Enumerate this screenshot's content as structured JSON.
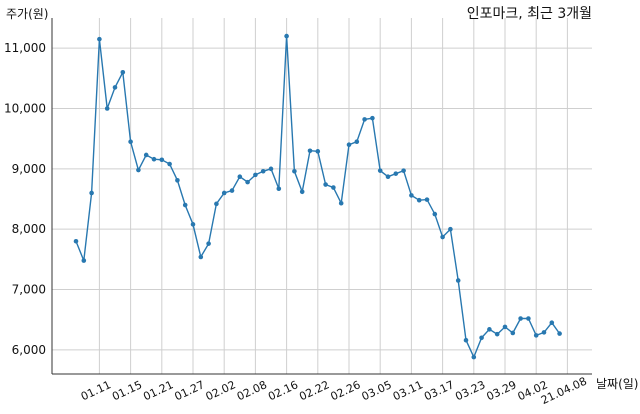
{
  "chart_data": {
    "type": "line",
    "title": "인포마크, 최근 3개월",
    "ylabel": "주가(원)",
    "xlabel": "날짜(일)",
    "ylim": [
      5600,
      11500
    ],
    "yticks": [
      6000,
      7000,
      8000,
      9000,
      10000,
      11000
    ],
    "ytick_labels": [
      "6,000",
      "7,000",
      "8,000",
      "9,000",
      "10,000",
      "11,000"
    ],
    "xtick_labels": [
      "01.11",
      "01.15",
      "01.21",
      "01.27",
      "02.02",
      "02.08",
      "02.16",
      "02.22",
      "02.26",
      "03.05",
      "03.11",
      "03.17",
      "03.23",
      "03.29",
      "04.02",
      "21.04.08"
    ],
    "xtick_positions": [
      3,
      7,
      11,
      15,
      19,
      23,
      27,
      31,
      35,
      39,
      43,
      47,
      51,
      55,
      59,
      63
    ],
    "grid": true,
    "color": "#2878b0",
    "series": [
      {
        "values": [
          7800,
          7480,
          8600,
          11150,
          10000,
          10350,
          10600,
          9450,
          8980,
          9230,
          9160,
          9150,
          9080,
          8810,
          8400,
          8080,
          7540,
          7760,
          8420,
          8600,
          8640,
          8870,
          8780,
          8900,
          8960,
          9000,
          8670,
          11200,
          8960,
          8620,
          9300,
          9290,
          8740,
          8690,
          8430,
          9400,
          9450,
          9820,
          9840,
          8970,
          8870,
          8920,
          8970,
          8560,
          8480,
          8490,
          8250,
          7870,
          8000,
          7150,
          6160,
          5880,
          6200,
          6340,
          6260,
          6380,
          6280,
          6520,
          6520,
          6240,
          6290,
          6450,
          6270
        ]
      }
    ]
  }
}
